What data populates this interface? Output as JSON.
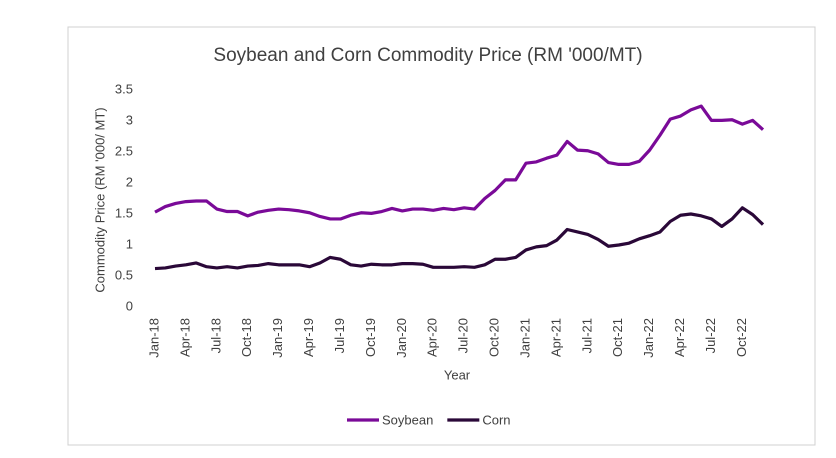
{
  "chart_data": {
    "type": "line",
    "title": "Soybean and Corn Commodity Price (RM '000/MT)",
    "x_label": "Year",
    "y_label": "Commodity Price (RM '000/ MT)",
    "categories": [
      "Jan-18",
      null,
      null,
      "Apr-18",
      null,
      null,
      "Jul-18",
      null,
      null,
      "Oct-18",
      null,
      null,
      "Jan-19",
      null,
      null,
      "Apr-19",
      null,
      null,
      "Jul-19",
      null,
      null,
      "Oct-19",
      null,
      null,
      "Jan-20",
      null,
      null,
      "Apr-20",
      null,
      null,
      "Jul-20",
      null,
      null,
      "Oct-20",
      null,
      null,
      "Jan-21",
      null,
      null,
      "Apr-21",
      null,
      null,
      "Jul-21",
      null,
      null,
      "Oct-21",
      null,
      null,
      "Jan-22",
      null,
      null,
      "Apr-22",
      null,
      null,
      "Jul-22",
      null,
      null,
      "Oct-22",
      null,
      null
    ],
    "series": [
      {
        "name": "Soybean",
        "color": "#7a0a98",
        "values": [
          1.53,
          1.62,
          1.67,
          1.7,
          1.71,
          1.71,
          1.58,
          1.54,
          1.54,
          1.47,
          1.53,
          1.56,
          1.58,
          1.57,
          1.55,
          1.52,
          1.46,
          1.42,
          1.42,
          1.48,
          1.52,
          1.51,
          1.54,
          1.59,
          1.55,
          1.58,
          1.58,
          1.56,
          1.59,
          1.57,
          1.6,
          1.58,
          1.75,
          1.88,
          2.05,
          2.05,
          2.32,
          2.34,
          2.4,
          2.45,
          2.67,
          2.53,
          2.52,
          2.47,
          2.33,
          2.3,
          2.3,
          2.35,
          2.53,
          2.77,
          3.03,
          3.08,
          3.18,
          3.24,
          3.01,
          3.01,
          3.02,
          2.95,
          3.01,
          2.86
        ]
      },
      {
        "name": "Corn",
        "color": "#2a0838",
        "values": [
          0.62,
          0.63,
          0.66,
          0.68,
          0.71,
          0.65,
          0.63,
          0.65,
          0.63,
          0.66,
          0.67,
          0.7,
          0.68,
          0.68,
          0.68,
          0.65,
          0.71,
          0.8,
          0.77,
          0.68,
          0.66,
          0.69,
          0.68,
          0.68,
          0.7,
          0.7,
          0.69,
          0.64,
          0.64,
          0.64,
          0.65,
          0.64,
          0.68,
          0.77,
          0.77,
          0.8,
          0.92,
          0.97,
          0.99,
          1.08,
          1.25,
          1.21,
          1.17,
          1.09,
          0.98,
          1.0,
          1.03,
          1.1,
          1.15,
          1.21,
          1.38,
          1.48,
          1.5,
          1.47,
          1.42,
          1.3,
          1.42,
          1.6,
          1.49,
          1.33
        ]
      }
    ],
    "ylim": [
      0,
      3.5
    ],
    "yticks": [
      0,
      0.5,
      1,
      1.5,
      2,
      2.5,
      3,
      3.5
    ],
    "grid": false,
    "legend": "bottom"
  }
}
